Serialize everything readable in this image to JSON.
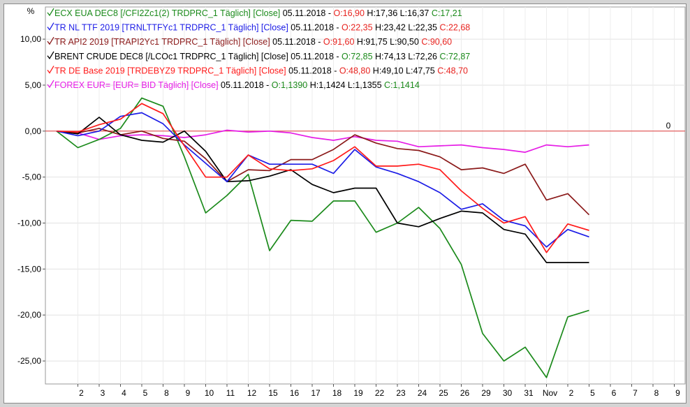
{
  "chart_data": {
    "type": "line",
    "y_unit": "%",
    "ylim": [
      -27.5,
      13.5
    ],
    "y_ticks": [
      10,
      5,
      0,
      -5,
      -10,
      -15,
      -20,
      -25
    ],
    "y_tick_labels": [
      "10,00",
      "5,00",
      "0,00",
      "-5,00",
      "-10,00",
      "-15,00",
      "-20,00",
      "-25,00"
    ],
    "x_tick_labels": [
      "2",
      "3",
      "4",
      "5",
      "8",
      "9",
      "10",
      "11",
      "12",
      "15",
      "16",
      "17",
      "18",
      "19",
      "22",
      "23",
      "24",
      "25",
      "26",
      "29",
      "30",
      "31",
      "Nov",
      "2",
      "5",
      "6",
      "7",
      "8",
      "9"
    ],
    "zero_line_label": "0",
    "grid": true,
    "legend_position": "top-left",
    "legend": [
      {
        "series": 0,
        "parts": [
          {
            "text": "ECX EUA DEC8 [/CFI2Zc1(2) TRDPRC_1 Täglich] [Close]",
            "color": "#1b8a1b"
          },
          {
            "text": " 05.11.2018 - ",
            "color": "#000000"
          },
          {
            "text": "O:16,90",
            "color": "#e8231f"
          },
          {
            "text": " H:17,36 L:16,37 ",
            "color": "#000000"
          },
          {
            "text": "C:17,21",
            "color": "#1b8a1b"
          }
        ]
      },
      {
        "series": 1,
        "parts": [
          {
            "text": "TR NL TTF 2019 [TRNLTTFYc1 TRDPRC_1 Täglich] [Close]",
            "color": "#1c1ce6"
          },
          {
            "text": " 05.11.2018 - ",
            "color": "#000000"
          },
          {
            "text": "O:22,35",
            "color": "#e8231f"
          },
          {
            "text": " H:23,42 L:22,35 ",
            "color": "#000000"
          },
          {
            "text": "C:22,68",
            "color": "#e8231f"
          }
        ]
      },
      {
        "series": 2,
        "parts": [
          {
            "text": "TR API2 2019 [TRAPI2Yc1 TRDPRC_1 Täglich] [Close]",
            "color": "#8b1a1a"
          },
          {
            "text": " 05.11.2018 - ",
            "color": "#000000"
          },
          {
            "text": "O:91,60",
            "color": "#e8231f"
          },
          {
            "text": " H:91,75 L:90,50 ",
            "color": "#000000"
          },
          {
            "text": "C:90,60",
            "color": "#e8231f"
          }
        ]
      },
      {
        "series": 3,
        "parts": [
          {
            "text": "BRENT CRUDE DEC8 [/LCOc1 TRDPRC_1 Täglich] [Close]",
            "color": "#000000"
          },
          {
            "text": " 05.11.2018 - ",
            "color": "#000000"
          },
          {
            "text": "O:72,85",
            "color": "#1b8a1b"
          },
          {
            "text": " H:74,13 L:72,26 ",
            "color": "#000000"
          },
          {
            "text": "C:72,87",
            "color": "#1b8a1b"
          }
        ]
      },
      {
        "series": 4,
        "parts": [
          {
            "text": "TR DE Base 2019 [TRDEBYZ9 TRDPRC_1 Täglich] [Close]",
            "color": "#ff1a1a"
          },
          {
            "text": " 05.11.2018 - ",
            "color": "#000000"
          },
          {
            "text": "O:48,80",
            "color": "#e8231f"
          },
          {
            "text": " H:49,10 L:47,75 ",
            "color": "#000000"
          },
          {
            "text": "C:48,70",
            "color": "#e8231f"
          }
        ]
      },
      {
        "series": 5,
        "parts": [
          {
            "text": "FOREX EUR= [EUR= BID Täglich] [Close]",
            "color": "#e61ee6"
          },
          {
            "text": " 05.11.2018 - ",
            "color": "#000000"
          },
          {
            "text": "O:1,1390",
            "color": "#1b8a1b"
          },
          {
            "text": " H:1,1424 L:1,1355 ",
            "color": "#000000"
          },
          {
            "text": "C:1,1414",
            "color": "#1b8a1b"
          }
        ]
      }
    ],
    "series": [
      {
        "color": "#1b8a1b",
        "values": [
          0,
          -1.8,
          -0.9,
          0.3,
          3.6,
          2.7,
          -2.8,
          -8.9,
          -7.0,
          -4.7,
          -13.0,
          -9.7,
          -9.8,
          -7.6,
          -7.6,
          -11.0,
          -10.0,
          -8.3,
          -10.6,
          -14.5,
          -22.0,
          -25.0,
          -23.5,
          -26.8,
          -20.2,
          -19.5
        ]
      },
      {
        "color": "#1c1ce6",
        "values": [
          0,
          -0.5,
          0,
          1.6,
          2.0,
          0.8,
          -1.5,
          -3.5,
          -5.5,
          -2.6,
          -3.6,
          -3.6,
          -3.6,
          -4.6,
          -2.0,
          -3.9,
          -4.6,
          -5.5,
          -6.7,
          -8.5,
          -7.9,
          -9.7,
          -10.3,
          -12.6,
          -10.7,
          -11.5
        ]
      },
      {
        "color": "#8b1a1a",
        "values": [
          0,
          -0.2,
          0.3,
          -0.4,
          0.0,
          -0.8,
          -1.1,
          -3.0,
          -5.5,
          -4.2,
          -4.3,
          -3.1,
          -3.1,
          -2.0,
          -0.4,
          -1.3,
          -1.9,
          -2.1,
          -2.8,
          -4.2,
          -4.0,
          -4.6,
          -3.6,
          -7.5,
          -6.8,
          -9.1
        ]
      },
      {
        "color": "#000000",
        "values": [
          0,
          -0.3,
          1.5,
          -0.4,
          -1.0,
          -1.2,
          0.0,
          -2.2,
          -5.5,
          -5.4,
          -4.9,
          -4.2,
          -5.8,
          -6.7,
          -6.2,
          -6.2,
          -10.0,
          -10.4,
          -9.5,
          -8.7,
          -8.9,
          -10.7,
          -11.2,
          -14.3,
          -14.3,
          -14.3
        ]
      },
      {
        "color": "#ff1a1a",
        "values": [
          0,
          -0.1,
          0.7,
          1.3,
          3.0,
          1.9,
          -1.6,
          -5.0,
          -5.0,
          -2.6,
          -4.1,
          -4.3,
          -4.1,
          -3.2,
          -1.7,
          -3.8,
          -3.8,
          -3.6,
          -4.2,
          -6.5,
          -8.4,
          -10.0,
          -9.3,
          -13.2,
          -10.1,
          -10.8
        ]
      },
      {
        "color": "#e61ee6",
        "values": [
          0,
          -0.2,
          -0.9,
          -0.5,
          -0.4,
          -0.5,
          -0.7,
          -0.4,
          0.1,
          -0.1,
          0.0,
          -0.2,
          -0.7,
          -1.0,
          -0.6,
          -1.0,
          -1.1,
          -1.7,
          -1.6,
          -1.5,
          -1.8,
          -2.0,
          -2.3,
          -1.5,
          -1.7,
          -1.5
        ]
      }
    ]
  }
}
